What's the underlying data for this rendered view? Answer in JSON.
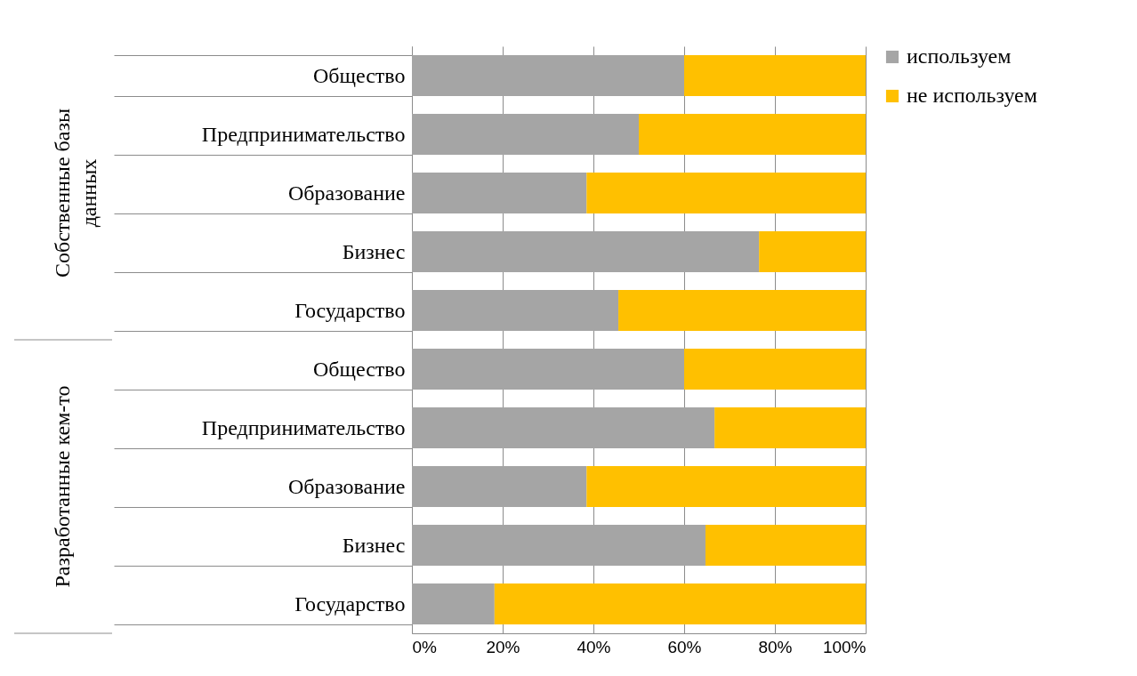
{
  "chart_data": {
    "type": "bar",
    "orientation": "horizontal",
    "stacked": true,
    "categories": [
      "Общество",
      "Предпринимательство",
      "Образование",
      "Бизнес",
      "Государство",
      "Общество",
      "Предпринимательство",
      "Образование",
      "Бизнес",
      "Государство"
    ],
    "series": [
      {
        "name": "используем",
        "color": "#a5a5a5",
        "values": [
          60,
          50,
          38.5,
          76.5,
          45.5,
          60,
          66.7,
          38.5,
          64.7,
          18.2
        ]
      },
      {
        "name": "не используем",
        "color": "#ffc000",
        "values": [
          40,
          50,
          61.5,
          23.5,
          54.5,
          40,
          33.3,
          61.5,
          35.3,
          81.8
        ]
      }
    ],
    "annotations": [
      "Собственные базы данных",
      "Разработанные кем-то"
    ],
    "xlim": [
      0,
      100
    ],
    "xticks": [
      {
        "value": 0,
        "label": "0%"
      },
      {
        "value": 20,
        "label": "20%"
      },
      {
        "value": 40,
        "label": "40%"
      },
      {
        "value": 60,
        "label": "60%"
      },
      {
        "value": 80,
        "label": "80%"
      },
      {
        "value": 100,
        "label": "100%"
      }
    ],
    "grid": "x",
    "legend": "right"
  }
}
